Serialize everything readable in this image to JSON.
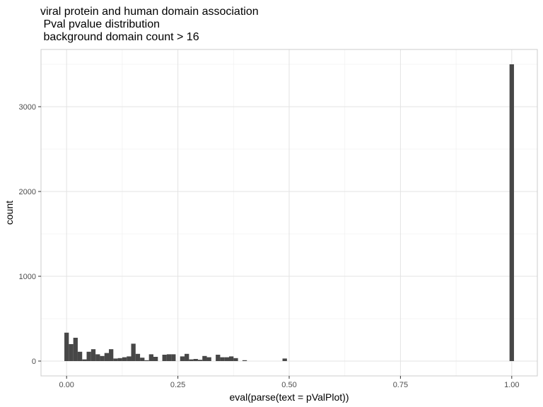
{
  "chart_data": {
    "type": "bar",
    "title_lines": [
      "viral protein and human domain association",
      " Pval pvalue distribution",
      " background domain count > 16"
    ],
    "xlabel": "eval(parse(text = pValPlot))",
    "ylabel": "count",
    "xlim": [
      -0.0575,
      1.0575
    ],
    "ylim": [
      -175,
      3675
    ],
    "x_ticks": [
      0,
      0.25,
      0.5,
      0.75,
      1
    ],
    "x_tick_labels": [
      "0.00",
      "0.25",
      "0.50",
      "0.75",
      "1.00"
    ],
    "y_ticks": [
      0,
      1000,
      2000,
      3000
    ],
    "y_tick_labels": [
      "0",
      "1000",
      "2000",
      "3000"
    ],
    "bin_width": 0.01,
    "bins": [
      {
        "x": 0.0,
        "count": 335
      },
      {
        "x": 0.01,
        "count": 200
      },
      {
        "x": 0.02,
        "count": 275
      },
      {
        "x": 0.03,
        "count": 110
      },
      {
        "x": 0.04,
        "count": 20
      },
      {
        "x": 0.05,
        "count": 110
      },
      {
        "x": 0.06,
        "count": 140
      },
      {
        "x": 0.07,
        "count": 80
      },
      {
        "x": 0.08,
        "count": 60
      },
      {
        "x": 0.09,
        "count": 95
      },
      {
        "x": 0.1,
        "count": 140
      },
      {
        "x": 0.11,
        "count": 30
      },
      {
        "x": 0.12,
        "count": 35
      },
      {
        "x": 0.13,
        "count": 45
      },
      {
        "x": 0.14,
        "count": 55
      },
      {
        "x": 0.15,
        "count": 205
      },
      {
        "x": 0.16,
        "count": 85
      },
      {
        "x": 0.17,
        "count": 40
      },
      {
        "x": 0.18,
        "count": 10
      },
      {
        "x": 0.19,
        "count": 80
      },
      {
        "x": 0.2,
        "count": 50
      },
      {
        "x": 0.22,
        "count": 75
      },
      {
        "x": 0.23,
        "count": 80
      },
      {
        "x": 0.24,
        "count": 80
      },
      {
        "x": 0.26,
        "count": 55
      },
      {
        "x": 0.27,
        "count": 85
      },
      {
        "x": 0.28,
        "count": 20
      },
      {
        "x": 0.29,
        "count": 25
      },
      {
        "x": 0.3,
        "count": 15
      },
      {
        "x": 0.31,
        "count": 60
      },
      {
        "x": 0.32,
        "count": 45
      },
      {
        "x": 0.34,
        "count": 75
      },
      {
        "x": 0.35,
        "count": 45
      },
      {
        "x": 0.36,
        "count": 45
      },
      {
        "x": 0.37,
        "count": 55
      },
      {
        "x": 0.38,
        "count": 35
      },
      {
        "x": 0.4,
        "count": 10
      },
      {
        "x": 0.49,
        "count": 30
      },
      {
        "x": 1.0,
        "count": 3500
      }
    ],
    "grid": true,
    "colors": {
      "bar": "#474747",
      "grid_major": "#e3e3e3",
      "grid_minor": "#f0f0f0",
      "panel_border": "#cccccc",
      "tick_text": "#4d4d4d"
    }
  }
}
